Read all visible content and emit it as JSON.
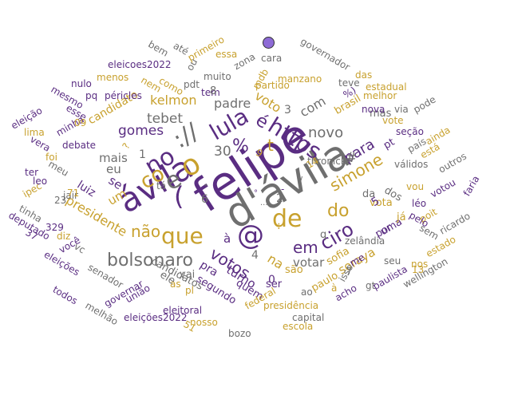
{
  "palette": {
    "purple": "#5a2d82",
    "gold": "#c8a12e",
    "gray": "#6f6f6f",
    "dot": "#8e6bd6"
  },
  "words": [
    {
      "text": "felipe",
      "c": "purple"
    },
    {
      "text": "d'ávila",
      "c": "gray"
    },
    {
      "text": "ávila",
      "c": "purple"
    },
    {
      "text": "que",
      "c": "gold"
    },
    {
      "text": "@",
      "c": "purple"
    },
    {
      "text": "de",
      "c": "gold"
    },
    {
      "text": "(",
      "c": "purple"
    },
    {
      "text": "o",
      "c": "gold"
    },
    {
      "text": "no",
      "c": "purple"
    },
    {
      "text": "e",
      "c": "gray"
    },
    {
      "text": "co",
      "c": "gold"
    },
    {
      "text": "://",
      "c": "gray"
    },
    {
      "text": "lula",
      "c": "purple"
    },
    {
      "text": "https",
      "c": "purple"
    },
    {
      "text": "é",
      "c": "purple"
    },
    {
      "text": "t",
      "c": "gold"
    },
    {
      "text": "%",
      "c": "purple"
    },
    {
      "text": "30",
      "c": "gray"
    },
    {
      "text": "bolsonaro",
      "c": "gray"
    },
    {
      "text": "ciro",
      "c": "purple"
    },
    {
      "text": "do",
      "c": "gold"
    },
    {
      "text": "em",
      "c": "purple"
    },
    {
      "text": "simone",
      "c": "gold"
    },
    {
      "text": "novo",
      "c": "gray"
    },
    {
      "text": "votos",
      "c": "purple"
    },
    {
      "text": "não",
      "c": "gold"
    },
    {
      "text": "tebet",
      "c": "gray"
    },
    {
      "text": "gomes",
      "c": "purple"
    },
    {
      "text": "padre",
      "c": "gray"
    },
    {
      "text": "kelmon",
      "c": "gold"
    },
    {
      "text": "presidente",
      "c": "gold"
    },
    {
      "text": "para",
      "c": "purple"
    },
    {
      "text": "soraya",
      "c": "gold"
    },
    {
      "text": "com",
      "c": "gray"
    },
    {
      "text": "voto",
      "c": "gold"
    },
    {
      "text": "na",
      "c": "gold"
    },
    {
      "text": "turno",
      "c": "purple"
    },
    {
      "text": "votar",
      "c": "gray"
    },
    {
      "text": "à",
      "c": "purple"
    },
    {
      "text": "#",
      "c": "gray"
    },
    {
      "text": "mais",
      "c": "gray"
    },
    {
      "text": "eu",
      "c": "gray"
    },
    {
      "text": "um",
      "c": "gold"
    },
    {
      "text": "se",
      "c": "purple"
    },
    {
      "text": "luiz",
      "c": "purple"
    },
    {
      "text": "candidato",
      "c": "gold"
    },
    {
      "text": "pra",
      "c": "purple"
    },
    {
      "text": "vai",
      "c": "gray"
    },
    {
      "text": "ele",
      "c": "gray"
    },
    {
      "text": "quem",
      "c": "purple"
    },
    {
      "text": "segundo",
      "c": "purple"
    },
    {
      "text": "candidatos",
      "c": "gray"
    },
    {
      "text": "ser",
      "c": "purple"
    },
    {
      "text": "são",
      "c": "gold"
    },
    {
      "text": "paulo",
      "c": "gold"
    },
    {
      "text": "sofia",
      "c": "gold"
    },
    {
      "text": "vota",
      "c": "gold"
    },
    {
      "text": "por",
      "c": "purple"
    },
    {
      "text": "uma",
      "c": "purple"
    },
    {
      "text": "já",
      "c": "gold"
    },
    {
      "text": "da",
      "c": "gray"
    },
    {
      "text": "dos",
      "c": "gray"
    },
    {
      "text": "mas",
      "c": "gray"
    },
    {
      "text": "pt",
      "c": "purple"
    },
    {
      "text": "brasil",
      "c": "gold"
    },
    {
      "text": "thronicke",
      "c": "gray"
    },
    {
      "text": "manzano",
      "c": "gold"
    },
    {
      "text": "partido",
      "c": "gold"
    },
    {
      "text": "governador",
      "c": "gray"
    },
    {
      "text": "estadual",
      "c": "gold"
    },
    {
      "text": "melhor",
      "c": "gold"
    },
    {
      "text": "nova",
      "c": "purple"
    },
    {
      "text": "via",
      "c": "gray"
    },
    {
      "text": "vote",
      "c": "gold"
    },
    {
      "text": "seção",
      "c": "purple"
    },
    {
      "text": "pode",
      "c": "gray"
    },
    {
      "text": "ainda",
      "c": "gold"
    },
    {
      "text": "país",
      "c": "gray"
    },
    {
      "text": "válidos",
      "c": "gray"
    },
    {
      "text": "está",
      "c": "gold"
    },
    {
      "text": "outros",
      "c": "gray"
    },
    {
      "text": "vou",
      "c": "gold"
    },
    {
      "text": "votou",
      "c": "purple"
    },
    {
      "text": "faria",
      "c": "purple"
    },
    {
      "text": "léo",
      "c": "purple"
    },
    {
      "text": "poit",
      "c": "gold"
    },
    {
      "text": "ricardo",
      "c": "gray"
    },
    {
      "text": "pelo",
      "c": "purple"
    },
    {
      "text": "sem",
      "c": "gray"
    },
    {
      "text": "zelândia",
      "c": "gray"
    },
    {
      "text": "nos",
      "c": "gold"
    },
    {
      "text": "estado",
      "c": "gold"
    },
    {
      "text": "seu",
      "c": "gray"
    },
    {
      "text": "me",
      "c": "purple"
    },
    {
      "text": "paulista",
      "c": "purple"
    },
    {
      "text": "wellington",
      "c": "gray"
    },
    {
      "text": "gt",
      "c": "gray"
    },
    {
      "text": "isso",
      "c": "gray"
    },
    {
      "text": "acho",
      "c": "purple"
    },
    {
      "text": "presidência",
      "c": "gold"
    },
    {
      "text": "capital",
      "c": "gray"
    },
    {
      "text": "escola",
      "c": "gold"
    },
    {
      "text": "federal",
      "c": "gold"
    },
    {
      "text": "eleitoral",
      "c": "purple"
    },
    {
      "text": "nosso",
      "c": "gold"
    },
    {
      "text": "bozo",
      "c": "gray"
    },
    {
      "text": "eleições2022",
      "c": "purple"
    },
    {
      "text": "melhão",
      "c": "gray"
    },
    {
      "text": "governar",
      "c": "purple"
    },
    {
      "text": "união",
      "c": "purple"
    },
    {
      "text": "senador",
      "c": "gray"
    },
    {
      "text": "todos",
      "c": "purple"
    },
    {
      "text": "eleições",
      "c": "purple"
    },
    {
      "text": "deputado",
      "c": "purple"
    },
    {
      "text": "tinha",
      "c": "gray"
    },
    {
      "text": "você",
      "c": "purple"
    },
    {
      "text": "vc",
      "c": "gray"
    },
    {
      "text": "diz",
      "c": "gold"
    },
    {
      "text": "jair",
      "c": "gray"
    },
    {
      "text": "meu",
      "c": "gray"
    },
    {
      "text": "ipec",
      "c": "gold"
    },
    {
      "text": "leo",
      "c": "purple"
    },
    {
      "text": "ter",
      "c": "purple"
    },
    {
      "text": "foi",
      "c": "gold"
    },
    {
      "text": "debate",
      "c": "purple"
    },
    {
      "text": "vera",
      "c": "purple"
    },
    {
      "text": "lima",
      "c": "gold"
    },
    {
      "text": "minha",
      "c": "purple"
    },
    {
      "text": "eleição",
      "c": "purple"
    },
    {
      "text": "mesmo",
      "c": "purple"
    },
    {
      "text": "esse",
      "c": "purple"
    },
    {
      "text": "pq",
      "c": "purple"
    },
    {
      "text": "péricles",
      "c": "purple"
    },
    {
      "text": "nulo",
      "c": "purple"
    },
    {
      "text": "menos",
      "c": "gold"
    },
    {
      "text": "bem",
      "c": "gray"
    },
    {
      "text": "eleicoes2022",
      "c": "purple"
    },
    {
      "text": "até",
      "c": "gray"
    },
    {
      "text": "primeiro",
      "c": "gold"
    },
    {
      "text": "ou",
      "c": "gray"
    },
    {
      "text": "muito",
      "c": "gray"
    },
    {
      "text": "essa",
      "c": "gold"
    },
    {
      "text": "zona",
      "c": "gray"
    },
    {
      "text": "cara",
      "c": "gray"
    },
    {
      "text": "nem",
      "c": "gold"
    },
    {
      "text": "como",
      "c": "gold"
    },
    {
      "text": "pdt",
      "c": "gray"
    },
    {
      "text": "tem",
      "c": "purple"
    },
    {
      "text": "mdb",
      "c": "gold"
    },
    {
      "text": "teve",
      "c": "gray"
    },
    {
      "text": "das",
      "c": "gold"
    },
    {
      "text": "%)",
      "c": "purple"
    },
    {
      "text": "8",
      "c": "gray"
    },
    {
      "text": "3",
      "c": "gray"
    },
    {
      "text": "9",
      "c": "gold"
    },
    {
      "text": "1",
      "c": "gray"
    },
    {
      "text": "6",
      "c": "gray"
    },
    {
      "text": "4",
      "c": "gray"
    },
    {
      "text": "5",
      "c": "purple"
    },
    {
      "text": "2",
      "c": "gray"
    },
    {
      "text": "0",
      "c": "purple"
    },
    {
      "text": "7",
      "c": "gray"
    },
    {
      "text": "q",
      "c": "gray"
    },
    {
      "text": "as",
      "c": "gold"
    },
    {
      "text": "pl",
      "c": "gold"
    },
    {
      "text": "ao",
      "c": "gray"
    },
    {
      "text": "à",
      "c": "gold"
    },
    {
      "text": "14",
      "c": "gold"
    },
    {
      "text": "13",
      "c": "gold"
    },
    {
      "text": "23",
      "c": "gray"
    },
    {
      "text": "71",
      "c": "gold"
    },
    {
      "text": "329",
      "c": "purple"
    },
    {
      "text": "37",
      "c": "purple"
    },
    {
      "text": "09",
      "c": "gold"
    },
    {
      "text": "51",
      "c": "gold"
    },
    {
      "text": "tá",
      "c": "gray"
    },
    {
      "text": "?",
      "c": "gold"
    },
    {
      "text": "/",
      "c": "gray"
    },
    {
      "text": "-",
      "c": "purple"
    },
    {
      "text": ":",
      "c": "gold"
    },
    {
      "text": "...",
      "c": "gray"
    },
    {
      "text": "*",
      "c": "gray"
    },
    {
      "text": "\"",
      "c": "gray"
    },
    {
      "text": "°",
      "c": "purple"
    }
  ]
}
